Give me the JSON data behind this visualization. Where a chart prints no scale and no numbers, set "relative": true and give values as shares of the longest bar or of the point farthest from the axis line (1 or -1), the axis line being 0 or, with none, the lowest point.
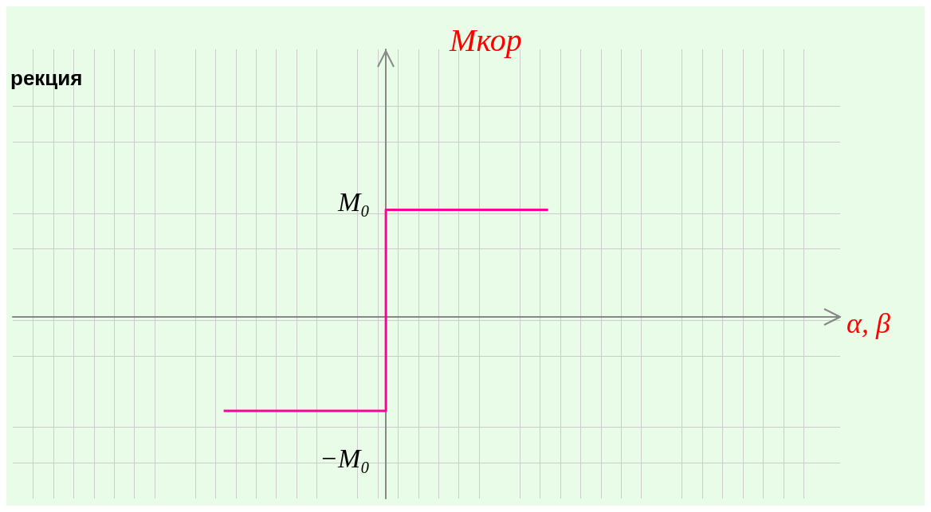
{
  "chart_data": {
    "type": "step",
    "title": "рекция",
    "categories": [
      null,
      null,
      null
    ],
    "series": [
      {
        "color": "#ff0099",
        "values": [
          -0.88,
          1,
          1
        ]
      }
    ],
    "relative": true,
    "annotations": [
      "Mкор",
      "α, β",
      "M₀",
      "−M₀"
    ],
    "grid": true,
    "marker": "none"
  }
}
